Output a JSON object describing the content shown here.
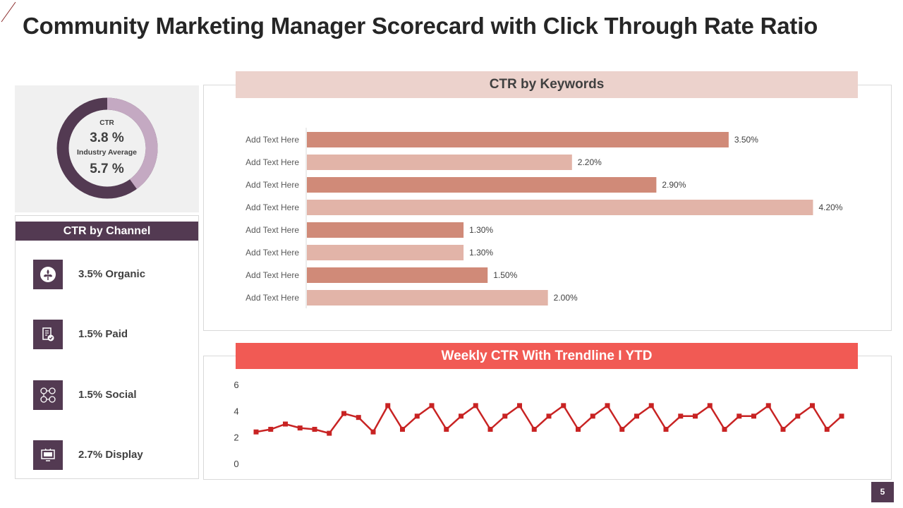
{
  "page": {
    "title": "Community Marketing Manager Scorecard with Click Through Rate Ratio",
    "page_number": "5"
  },
  "donut": {
    "ctr_label": "CTR",
    "ctr_value": "3.8 %",
    "industry_label": "Industry Average",
    "industry_value": "5.7 %",
    "ctr_fraction": 0.4,
    "colors": {
      "ctr": "#c4a9c2",
      "industry": "#533a52"
    }
  },
  "channels": {
    "header": "CTR by Channel",
    "items": [
      {
        "label": "3.5% Organic",
        "icon": "leaf-icon"
      },
      {
        "label": "1.5% Paid",
        "icon": "document-check-icon"
      },
      {
        "label": "1.5% Social",
        "icon": "people-network-icon"
      },
      {
        "label": "2.7% Display",
        "icon": "display-screen-icon"
      }
    ]
  },
  "keywords_chart": {
    "header": "CTR by Keywords"
  },
  "weekly_chart": {
    "header": "Weekly CTR With  Trendline I YTD"
  },
  "colors": {
    "brand_dark": "#533a52",
    "bar_dark": "#d08a78",
    "bar_light": "#e2b4a8",
    "line_red": "#c82323",
    "red_header": "#f15a54"
  },
  "chart_data": [
    {
      "type": "bar",
      "orientation": "horizontal",
      "title": "CTR by Keywords",
      "categories": [
        "Add Text Here",
        "Add Text Here",
        "Add Text Here",
        "Add Text Here",
        "Add Text Here",
        "Add Text Here",
        "Add Text Here",
        "Add Text Here"
      ],
      "values": [
        3.5,
        2.2,
        2.9,
        4.2,
        1.3,
        1.3,
        1.5,
        2.0
      ],
      "value_labels": [
        "3.50%",
        "2.20%",
        "2.90%",
        "4.20%",
        "1.30%",
        "1.30%",
        "1.50%",
        "2.00%"
      ],
      "xlim": [
        0,
        4.25
      ],
      "grid": false
    },
    {
      "type": "line",
      "title": "Weekly CTR With  Trendline I YTD",
      "values": [
        2.4,
        2.6,
        3.0,
        2.7,
        2.6,
        2.3,
        3.8,
        3.5,
        2.4,
        4.4,
        2.6,
        3.6,
        4.4,
        2.6,
        3.6,
        4.4,
        2.6,
        3.6,
        4.4,
        2.6,
        3.6,
        4.4,
        2.6,
        3.6,
        4.4,
        2.6,
        3.6,
        4.4,
        2.6,
        3.6,
        3.6,
        4.4,
        2.6,
        3.6,
        3.6,
        4.4,
        2.6,
        3.6,
        4.4,
        2.6,
        3.6
      ],
      "yticks": [
        "0",
        "2",
        "4",
        "6"
      ],
      "ylim": [
        0,
        6
      ],
      "marker": "square",
      "grid": false
    }
  ]
}
